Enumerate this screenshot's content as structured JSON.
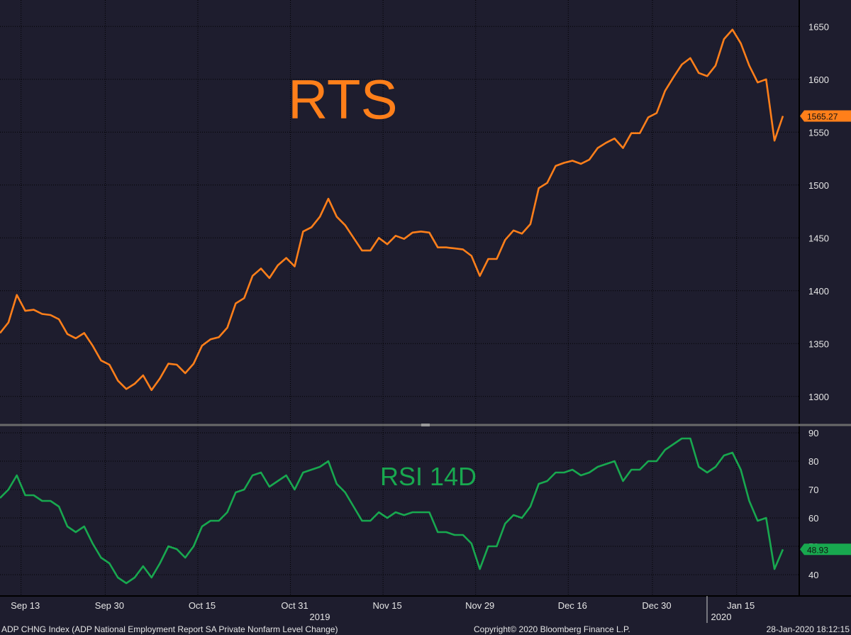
{
  "colors": {
    "background": "#1e1d2e",
    "rts_line": "#ff7f1a",
    "rsi_line": "#18a84f",
    "grid": "#000000",
    "text": "#e6e6e6"
  },
  "footer": {
    "left": "ADP CHNG Index (ADP National Employment Report SA Private Nonfarm Level Change)",
    "center": "Copyright© 2020 Bloomberg Finance L.P.",
    "right": "28-Jan-2020 18:12:15"
  },
  "chart_data": [
    {
      "type": "line",
      "title": "RTS",
      "ylim": [
        1275,
        1675
      ],
      "yticks": [
        1300,
        1350,
        1400,
        1450,
        1500,
        1550,
        1600,
        1650
      ],
      "last_value_label": "1565.27",
      "grid": true,
      "series": [
        {
          "values": [
            1360,
            1370,
            1396,
            1381,
            1382,
            1378,
            1377,
            1373,
            1359,
            1355,
            1360,
            1348,
            1334,
            1330,
            1315,
            1307,
            1312,
            1320,
            1306,
            1317,
            1331,
            1330,
            1322,
            1331,
            1348,
            1354,
            1356,
            1365,
            1388,
            1393,
            1414,
            1421,
            1412,
            1424,
            1431,
            1423,
            1456,
            1460,
            1470,
            1487,
            1470,
            1462,
            1450,
            1438,
            1438,
            1450,
            1444,
            1452,
            1449,
            1455,
            1456,
            1455,
            1441,
            1441,
            1440,
            1439,
            1433,
            1414,
            1430,
            1430,
            1448,
            1457,
            1454,
            1463,
            1497,
            1502,
            1518,
            1521,
            1523,
            1520,
            1524,
            1535,
            1540,
            1544,
            1535,
            1549,
            1549,
            1564,
            1568,
            1589,
            1602,
            1614,
            1620,
            1606,
            1603,
            1613,
            1638,
            1647,
            1634,
            1613,
            1597,
            1600,
            1542,
            1565.27
          ]
        }
      ]
    },
    {
      "type": "line",
      "title": "RSI 14D",
      "ylim": [
        33,
        92
      ],
      "yticks": [
        40,
        50,
        60,
        70,
        80,
        90
      ],
      "last_value_label": "48.93",
      "grid": true,
      "x_tick_labels": [
        "Sep 13",
        "Sep 30",
        "Oct 15",
        "Oct 31",
        "Nov 15",
        "Nov 29",
        "Dec 16",
        "Dec 30",
        "Jan 15"
      ],
      "year_labels": [
        "2019",
        "2020"
      ],
      "series": [
        {
          "values": [
            67,
            70,
            75,
            68,
            68,
            66,
            66,
            64,
            57,
            55,
            57,
            51,
            46,
            44,
            39,
            37,
            39,
            43,
            39,
            44,
            50,
            49,
            46,
            50,
            57,
            59,
            59,
            62,
            69,
            70,
            75,
            76,
            71,
            73,
            75,
            70,
            76,
            77,
            78,
            80,
            72,
            69,
            64,
            59,
            59,
            62,
            60,
            62,
            61,
            62,
            62,
            62,
            55,
            55,
            54,
            54,
            51,
            42,
            50,
            50,
            58,
            61,
            60,
            64,
            72,
            73,
            76,
            76,
            77,
            75,
            76,
            78,
            79,
            80,
            73,
            77,
            77,
            80,
            80,
            84,
            86,
            88,
            88,
            78,
            76,
            78,
            82,
            83,
            77,
            66,
            59,
            60,
            42,
            48.93
          ]
        }
      ]
    }
  ]
}
